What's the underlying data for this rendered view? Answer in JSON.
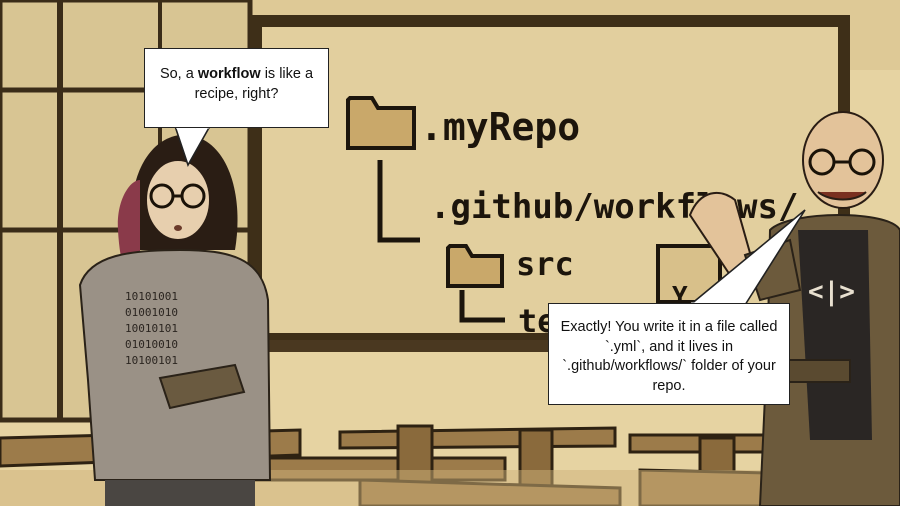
{
  "scene": {
    "description_icons": [
      "folder-icon",
      "code-icon"
    ]
  },
  "blackboard": {
    "root": ".myRepo",
    "workflows": ".github/workflows/",
    "src": "src",
    "partial": "te",
    "partial_right": "Y"
  },
  "shirt": {
    "symbol": "<|>"
  },
  "bubble_left": {
    "before": "So, a ",
    "bold": "workflow",
    "after": " is like a recipe, right?"
  },
  "bubble_right": {
    "text": "Exactly! You write it in a file called `.yml`, and it lives in `.github/workflows/` folder of your repo."
  }
}
